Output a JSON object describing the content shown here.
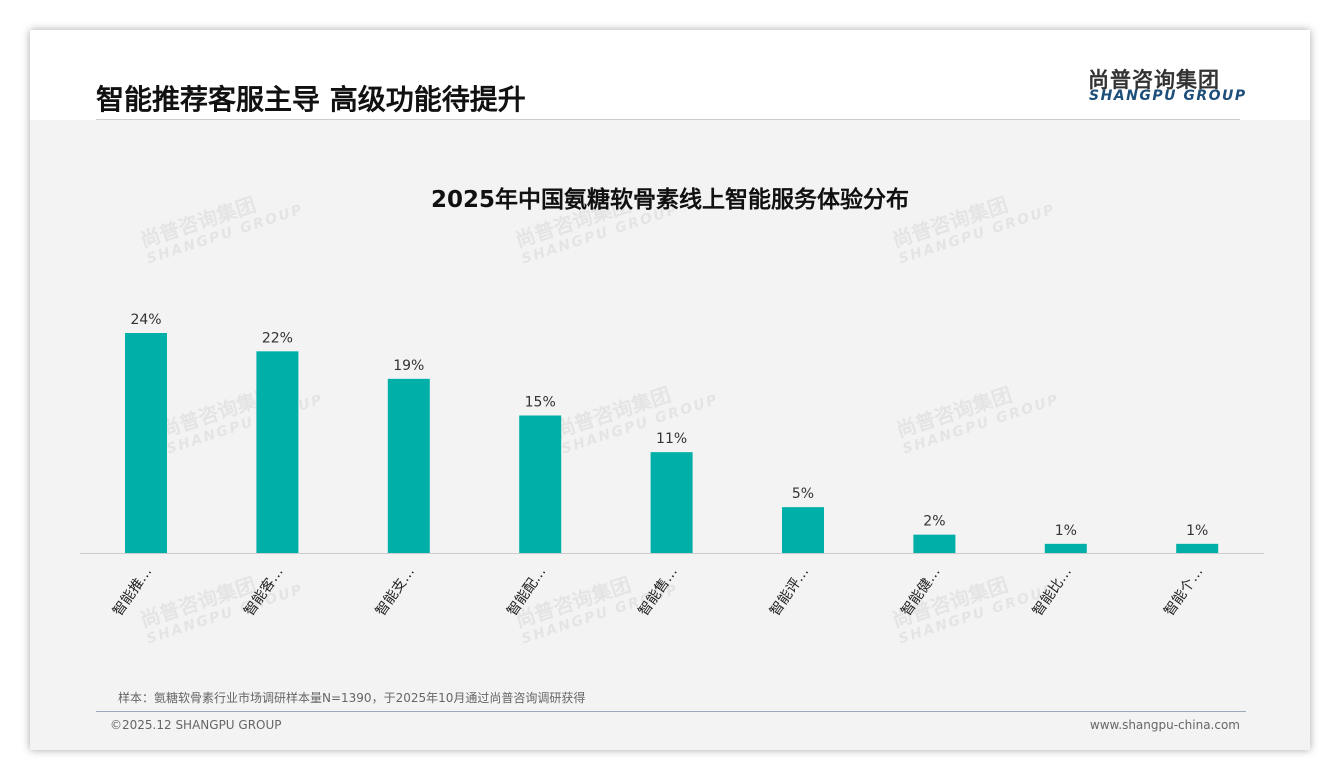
{
  "header": {
    "title": "智能推荐客服主导 高级功能待提升",
    "logo_cn": "尚普咨询集团",
    "logo_en": "SHANGPU GROUP"
  },
  "chart_data": {
    "type": "bar",
    "title": "2025年中国氨糖软骨素线上智能服务体验分布",
    "categories": [
      "智能推…",
      "智能客…",
      "智能支…",
      "智能配…",
      "智能售…",
      "智能评…",
      "智能健…",
      "智能比…",
      "智能个…"
    ],
    "values": [
      24,
      22,
      19,
      15,
      11,
      5,
      2,
      1,
      1
    ],
    "value_labels": [
      "24%",
      "22%",
      "19%",
      "15%",
      "11%",
      "5%",
      "2%",
      "1%",
      "1%"
    ],
    "ylim": [
      0,
      24
    ],
    "color": "#00b0a8",
    "grid": false,
    "legend": "none"
  },
  "footer": {
    "note": "样本：氨糖软骨素行业市场调研样本量N=1390，于2025年10月通过尚普咨询调研获得",
    "copyright": "©2025.12 SHANGPU GROUP",
    "url": "www.shangpu-china.com"
  }
}
